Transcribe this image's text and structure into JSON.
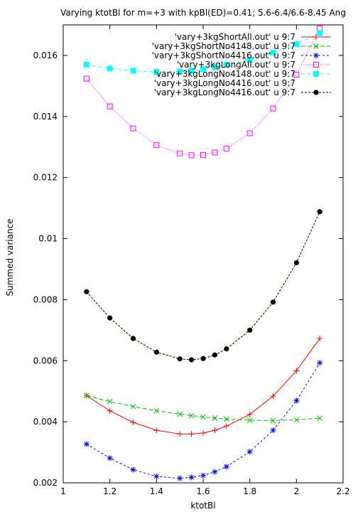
{
  "chart_data": {
    "type": "line",
    "title": "Varying ktotBl for m=+3 with kpBl(ED)=0.41; 5.6-6.4/6.6-8.45 Ang",
    "xlabel": "ktotBl",
    "ylabel": "Summed variance",
    "xlim": [
      1,
      2.2
    ],
    "ylim": [
      0.002,
      0.017
    ],
    "xticks": [
      1,
      1.2,
      1.4,
      1.6,
      1.8,
      2,
      2.2
    ],
    "xtick_labels": [
      "1",
      "1.2",
      "1.4",
      "1.6",
      "1.8",
      "2",
      "2.2"
    ],
    "yticks": [
      0.002,
      0.004,
      0.006,
      0.008,
      0.01,
      0.012,
      0.014,
      0.016
    ],
    "ytick_labels": [
      "0.002",
      "0.004",
      "0.006",
      "0.008",
      "0.01",
      "0.012",
      "0.014",
      "0.016"
    ],
    "grid": false,
    "legend_position": "top-right",
    "x": [
      1.1,
      1.2,
      1.3,
      1.4,
      1.5,
      1.55,
      1.6,
      1.65,
      1.7,
      1.8,
      1.9,
      2.0,
      2.1
    ],
    "series": [
      {
        "name": "'vary+3kgShortAll.out' u 9:7",
        "color": "#ff0000",
        "marker": "plus",
        "dash": "",
        "values": [
          0.00486,
          0.00436,
          0.00398,
          0.00372,
          0.0036,
          0.0036,
          0.00363,
          0.00372,
          0.00386,
          0.00424,
          0.00484,
          0.00567,
          0.00673
        ]
      },
      {
        "name": "'vary+3kgShortNo4148.out' u 9:7",
        "color": "#00c000",
        "marker": "cross",
        "dash": "6,3",
        "values": [
          0.00486,
          0.00466,
          0.0045,
          0.00436,
          0.00425,
          0.0042,
          0.00416,
          0.00412,
          0.00409,
          0.00405,
          0.00404,
          0.00406,
          0.00412
        ]
      },
      {
        "name": "'vary+3kgShortNo4416.out' u 9:7",
        "color": "#0000ff",
        "marker": "star",
        "dash": "3,3",
        "values": [
          0.00327,
          0.00281,
          0.00243,
          0.00221,
          0.00215,
          0.00218,
          0.00224,
          0.00236,
          0.00253,
          0.00302,
          0.00372,
          0.00469,
          0.00593
        ]
      },
      {
        "name": "'vary+3kgLongAll.out' u 9:7",
        "color": "#ff00ff",
        "marker": "open-square",
        "dash": "1,2",
        "values": [
          0.01524,
          0.01433,
          0.01361,
          0.01306,
          0.01279,
          0.01273,
          0.01274,
          0.01282,
          0.01295,
          0.01345,
          0.01426,
          0.01537,
          0.01689
        ]
      },
      {
        "name": "'vary+3kgLongNo4148.out' u 9:7",
        "color": "#00ffff",
        "marker": "filled-square",
        "dash": "4,2,1,2",
        "values": [
          0.0157,
          0.01557,
          0.0155,
          0.01546,
          0.01547,
          0.0155,
          0.01555,
          0.01562,
          0.0157,
          0.01586,
          0.01609,
          0.01637,
          0.01673
        ]
      },
      {
        "name": "'vary+3kgLongNo4416.out' u 9:7",
        "color": "#ffff00",
        "marker": "none",
        "dash": "1,3",
        "values": [
          0.00826,
          0.0074,
          0.00673,
          0.00628,
          0.00606,
          0.00603,
          0.00607,
          0.00619,
          0.00639,
          0.007,
          0.00792,
          0.00921,
          0.01088
        ]
      },
      {
        "name": "'vary+3kgLongNo4416.out' u 9:7",
        "color": "#000000",
        "marker": "filled-circle",
        "dash": "3,2",
        "values": [
          0.00826,
          0.0074,
          0.00673,
          0.00628,
          0.00606,
          0.00603,
          0.00607,
          0.00619,
          0.00639,
          0.007,
          0.00792,
          0.00921,
          0.01088
        ]
      }
    ]
  }
}
